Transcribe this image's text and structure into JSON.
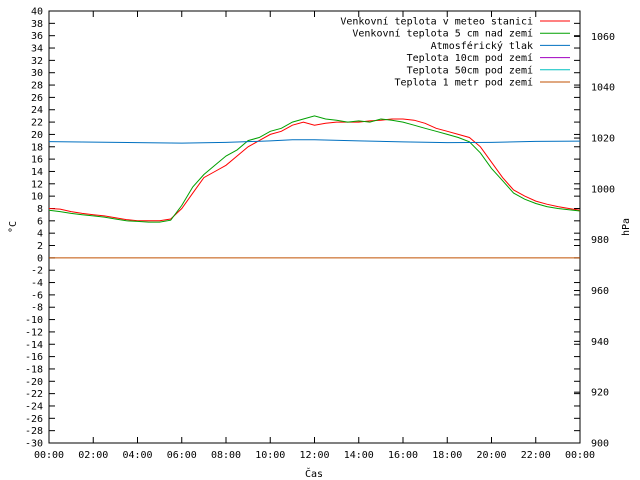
{
  "chart_data": {
    "type": "line",
    "xlabel": "Čas",
    "ylabel": "°C",
    "y2label": "hPa",
    "xlim": [
      0,
      24
    ],
    "ylim": [
      -30,
      40
    ],
    "y2lim": [
      900,
      1070
    ],
    "grid": false,
    "legend_position": "top-right",
    "x_ticks": [
      "00:00",
      "02:00",
      "04:00",
      "06:00",
      "08:00",
      "10:00",
      "12:00",
      "14:00",
      "16:00",
      "18:00",
      "20:00",
      "22:00",
      "00:00"
    ],
    "y_ticks": [
      40,
      38,
      36,
      34,
      32,
      30,
      28,
      26,
      24,
      22,
      20,
      18,
      16,
      14,
      12,
      10,
      8,
      6,
      4,
      2,
      0,
      -2,
      -4,
      -6,
      -8,
      -10,
      -12,
      -14,
      -16,
      -18,
      -20,
      -22,
      -24,
      -26,
      -28,
      -30
    ],
    "y2_ticks": [
      1060,
      1040,
      1020,
      1000,
      980,
      960,
      940,
      920,
      900
    ],
    "series": [
      {
        "name": "Venkovní teplota v meteo stanici",
        "axis": "left",
        "color": "#ff0000",
        "points": [
          [
            0,
            8.0
          ],
          [
            0.5,
            7.9
          ],
          [
            1,
            7.5
          ],
          [
            1.5,
            7.2
          ],
          [
            2,
            7.0
          ],
          [
            2.5,
            6.8
          ],
          [
            3,
            6.5
          ],
          [
            3.5,
            6.2
          ],
          [
            4,
            6.0
          ],
          [
            4.5,
            6.0
          ],
          [
            5,
            6.0
          ],
          [
            5.5,
            6.3
          ],
          [
            6,
            8.0
          ],
          [
            6.5,
            10.5
          ],
          [
            7,
            13.0
          ],
          [
            7.5,
            14.0
          ],
          [
            8,
            15.0
          ],
          [
            8.5,
            16.5
          ],
          [
            9,
            18.0
          ],
          [
            9.5,
            19.0
          ],
          [
            10,
            20.0
          ],
          [
            10.5,
            20.5
          ],
          [
            11,
            21.5
          ],
          [
            11.5,
            22.0
          ],
          [
            12,
            21.5
          ],
          [
            12.5,
            21.8
          ],
          [
            13,
            22.0
          ],
          [
            13.5,
            22.0
          ],
          [
            14,
            22.0
          ],
          [
            14.5,
            22.2
          ],
          [
            15,
            22.3
          ],
          [
            15.5,
            22.5
          ],
          [
            16,
            22.5
          ],
          [
            16.5,
            22.3
          ],
          [
            17,
            21.8
          ],
          [
            17.5,
            21.0
          ],
          [
            18,
            20.5
          ],
          [
            18.5,
            20.0
          ],
          [
            19,
            19.5
          ],
          [
            19.5,
            18.0
          ],
          [
            20,
            15.5
          ],
          [
            20.5,
            13.0
          ],
          [
            21,
            11.0
          ],
          [
            21.5,
            10.0
          ],
          [
            22,
            9.2
          ],
          [
            22.5,
            8.7
          ],
          [
            23,
            8.3
          ],
          [
            23.5,
            8.0
          ],
          [
            24,
            7.7
          ]
        ]
      },
      {
        "name": "Venkovní teplota 5 cm nad zemí",
        "axis": "left",
        "color": "#00a000",
        "points": [
          [
            0,
            7.7
          ],
          [
            0.5,
            7.5
          ],
          [
            1,
            7.2
          ],
          [
            1.5,
            7.0
          ],
          [
            2,
            6.8
          ],
          [
            2.5,
            6.6
          ],
          [
            3,
            6.3
          ],
          [
            3.5,
            6.0
          ],
          [
            4,
            5.9
          ],
          [
            4.5,
            5.8
          ],
          [
            5,
            5.8
          ],
          [
            5.5,
            6.1
          ],
          [
            6,
            8.5
          ],
          [
            6.5,
            11.5
          ],
          [
            7,
            13.5
          ],
          [
            7.5,
            15.0
          ],
          [
            8,
            16.5
          ],
          [
            8.5,
            17.5
          ],
          [
            9,
            19.0
          ],
          [
            9.5,
            19.5
          ],
          [
            10,
            20.5
          ],
          [
            10.5,
            21.0
          ],
          [
            11,
            22.0
          ],
          [
            11.5,
            22.5
          ],
          [
            12,
            23.0
          ],
          [
            12.5,
            22.5
          ],
          [
            13,
            22.3
          ],
          [
            13.5,
            22.0
          ],
          [
            14,
            22.2
          ],
          [
            14.5,
            22.0
          ],
          [
            15,
            22.5
          ],
          [
            15.5,
            22.3
          ],
          [
            16,
            22.0
          ],
          [
            16.5,
            21.5
          ],
          [
            17,
            21.0
          ],
          [
            17.5,
            20.5
          ],
          [
            18,
            20.0
          ],
          [
            18.5,
            19.5
          ],
          [
            19,
            18.8
          ],
          [
            19.5,
            17.0
          ],
          [
            20,
            14.5
          ],
          [
            20.5,
            12.5
          ],
          [
            21,
            10.5
          ],
          [
            21.5,
            9.5
          ],
          [
            22,
            8.8
          ],
          [
            22.5,
            8.3
          ],
          [
            23,
            8.0
          ],
          [
            23.5,
            7.8
          ],
          [
            24,
            7.6
          ]
        ]
      },
      {
        "name": "Atmosférický tlak",
        "axis": "right",
        "color": "#0070c0",
        "points": [
          [
            0,
            1018.6
          ],
          [
            2,
            1018.4
          ],
          [
            4,
            1018.2
          ],
          [
            6,
            1018.0
          ],
          [
            8,
            1018.3
          ],
          [
            10,
            1018.9
          ],
          [
            11,
            1019.3
          ],
          [
            12,
            1019.3
          ],
          [
            14,
            1018.9
          ],
          [
            16,
            1018.5
          ],
          [
            18,
            1018.2
          ],
          [
            20,
            1018.3
          ],
          [
            22,
            1018.7
          ],
          [
            24,
            1018.8
          ]
        ]
      },
      {
        "name": "Teplota 10cm pod zemí",
        "axis": "left",
        "color": "#a000c0",
        "points": []
      },
      {
        "name": "Teplota 50cm pod zemí",
        "axis": "left",
        "color": "#00c0c0",
        "points": []
      },
      {
        "name": "Teplota 1 metr pod zemí",
        "axis": "left",
        "color": "#c05000",
        "points": [
          [
            0,
            0
          ],
          [
            24,
            0
          ]
        ]
      }
    ]
  }
}
